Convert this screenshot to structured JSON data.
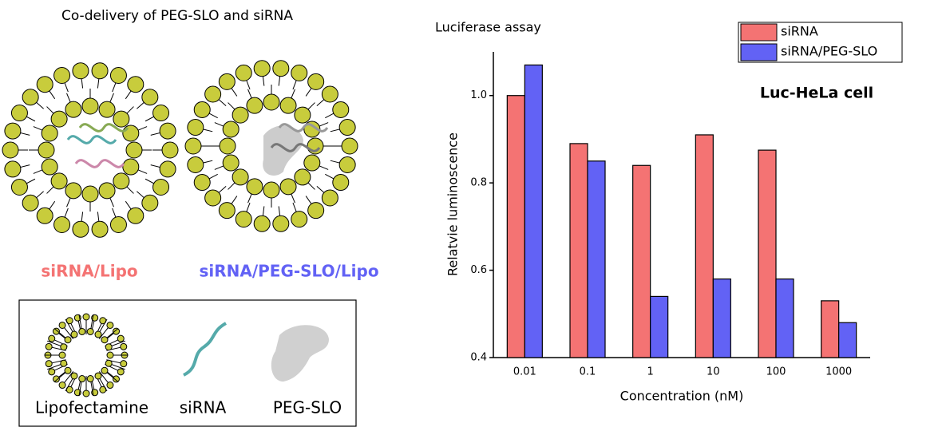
{
  "diagram": {
    "title": "Co-delivery of PEG-SLO and siRNA",
    "labels": [
      "siRNA/Lipo",
      "siRNA/PEG-SLO/Lipo"
    ],
    "legend": [
      "Lipofectamine",
      "siRNA",
      "PEG-SLO"
    ]
  },
  "chart_data": {
    "type": "bar",
    "title": "Luciferase assay",
    "annotation": "Luc-HeLa cell",
    "x_label": "Concentration (nM)",
    "y_label": "Relatvie luminoscence",
    "categories": [
      "0.01",
      "0.1",
      "1",
      "10",
      "100",
      "1000"
    ],
    "series": [
      {
        "name": "siRNA",
        "color": "#f47373",
        "values": [
          1.0,
          0.89,
          0.84,
          0.91,
          0.875,
          0.53
        ]
      },
      {
        "name": "siRNA/PEG-SLO",
        "color": "#6262f5",
        "values": [
          1.07,
          0.85,
          0.54,
          0.58,
          0.58,
          0.48
        ]
      }
    ],
    "ylim": [
      0.4,
      1.1
    ],
    "yticks": [
      0.4,
      0.6,
      0.8,
      {
        "value": 1,
        "label": "1.0"
      }
    ],
    "legend": "upper right"
  }
}
